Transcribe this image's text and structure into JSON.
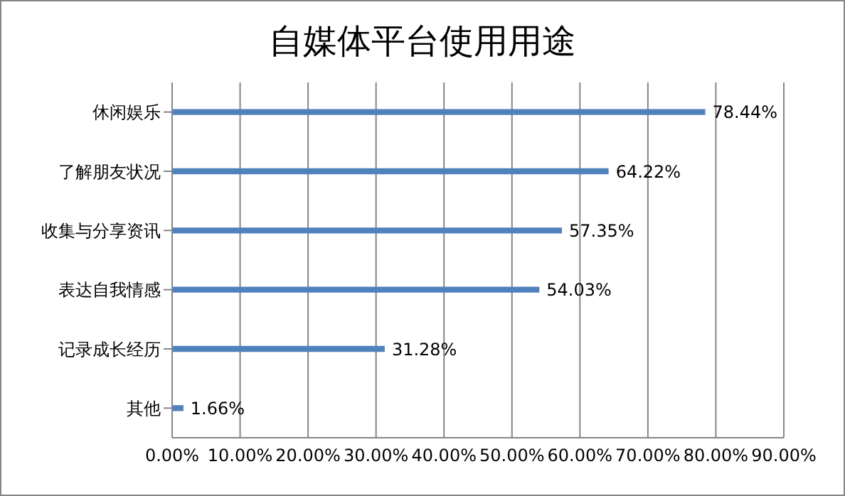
{
  "chart_data": {
    "type": "bar",
    "orientation": "horizontal",
    "title": "自媒体平台使用用途",
    "categories": [
      "休闲娱乐",
      "了解朋友状况",
      "收集与分享资讯",
      "表达自我情感",
      "记录成长经历",
      "其他"
    ],
    "values": [
      78.44,
      64.22,
      57.35,
      54.03,
      31.28,
      1.66
    ],
    "value_labels": [
      "78.44%",
      "64.22%",
      "57.35%",
      "54.03%",
      "31.28%",
      "1.66%"
    ],
    "color": "#4f81bd",
    "xlim": [
      0,
      90
    ],
    "xticks": [
      {
        "value": 0,
        "label": "0.00%"
      },
      {
        "value": 10,
        "label": "10.00%"
      },
      {
        "value": 20,
        "label": "20.00%"
      },
      {
        "value": 30,
        "label": "30.00%"
      },
      {
        "value": 40,
        "label": "40.00%"
      },
      {
        "value": 50,
        "label": "50.00%"
      },
      {
        "value": 60,
        "label": "60.00%"
      },
      {
        "value": 70,
        "label": "70.00%"
      },
      {
        "value": 80,
        "label": "80.00%"
      },
      {
        "value": 90,
        "label": "90.00%"
      }
    ],
    "grid": "x",
    "legend": false
  }
}
